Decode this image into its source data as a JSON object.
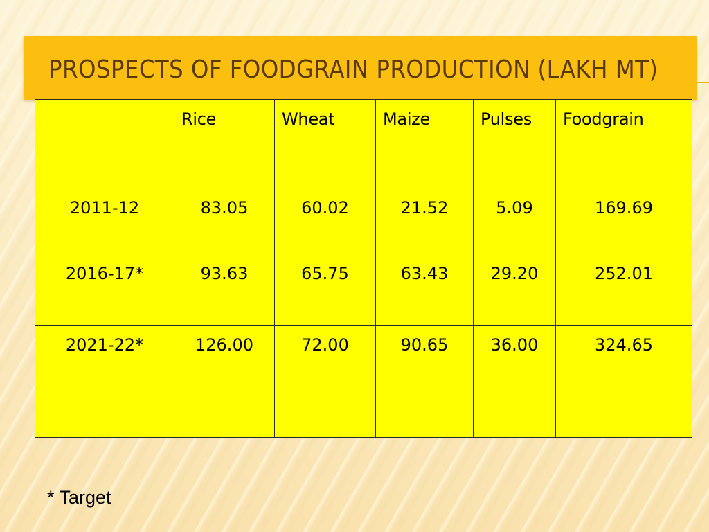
{
  "slide": {
    "title": "Prospects of Foodgrain Production (Lakh MT)",
    "footnote": "* Target",
    "colors": {
      "title_bar": "#fdbf0f",
      "title_text": "#5a3a0c",
      "table_fill": "#ffff00",
      "background": "#fcefc6"
    }
  },
  "table": {
    "headers": [
      "",
      "Rice",
      "Wheat",
      "Maize",
      "Pulses",
      "Foodgrain"
    ],
    "rows": [
      [
        "2011-12",
        "83.05",
        "60.02",
        "21.52",
        "5.09",
        "169.69"
      ],
      [
        "2016-17*",
        "93.63",
        "65.75",
        "63.43",
        "29.20",
        "252.01"
      ],
      [
        "2021-22*",
        "126.00",
        "72.00",
        "90.65",
        "36.00",
        "324.65"
      ]
    ]
  }
}
